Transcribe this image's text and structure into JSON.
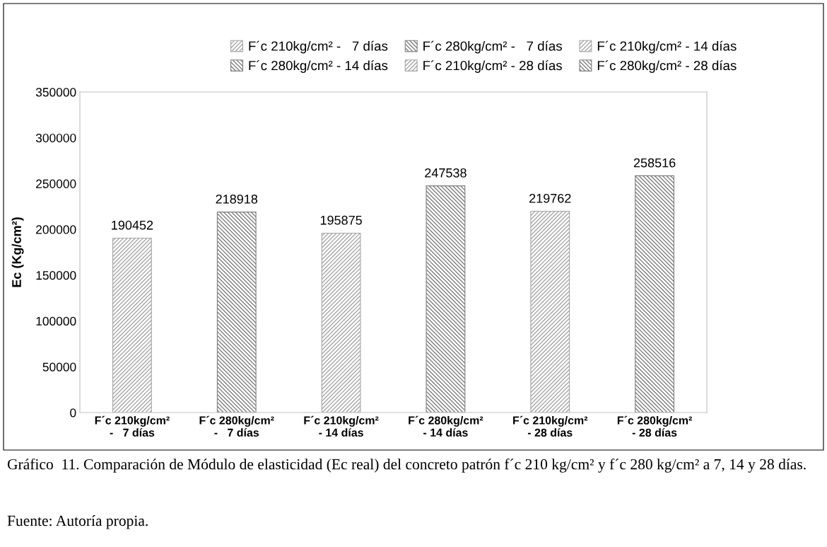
{
  "chart_data": {
    "type": "bar",
    "ylabel": "Ec (Kg/cm²)",
    "categories": [
      "F´c 210kg/cm²\n-   7 días",
      "F´c 280kg/cm²\n-   7 días",
      "F´c 210kg/cm²\n- 14 días",
      "F´c 280kg/cm²\n- 14 días",
      "F´c 210kg/cm²\n- 28 días",
      "F´c 280kg/cm²\n- 28 días"
    ],
    "series": [
      {
        "name": "F´c 210kg/cm² -   7 días",
        "color": "#a6a6a6",
        "values": [
          190452,
          null,
          null,
          null,
          null,
          null
        ]
      },
      {
        "name": "F´c 280kg/cm² -   7 días",
        "color": "#7f7f7f",
        "values": [
          null,
          218918,
          null,
          null,
          null,
          null
        ]
      },
      {
        "name": "F´c 210kg/cm² - 14 días",
        "color": "#a6a6a6",
        "values": [
          null,
          null,
          195875,
          null,
          null,
          null
        ]
      },
      {
        "name": "F´c 280kg/cm² - 14 días",
        "color": "#7f7f7f",
        "values": [
          null,
          null,
          null,
          247538,
          null,
          null
        ]
      },
      {
        "name": "F´c 210kg/cm² - 28 días",
        "color": "#a6a6a6",
        "values": [
          null,
          null,
          null,
          null,
          219762,
          null
        ]
      },
      {
        "name": "F´c 280kg/cm² - 28 días",
        "color": "#7f7f7f",
        "values": [
          null,
          null,
          null,
          null,
          null,
          258516
        ]
      }
    ],
    "ylim": [
      0,
      350000
    ],
    "yticks": [
      0,
      50000,
      100000,
      150000,
      200000,
      250000,
      300000,
      350000
    ],
    "data_labels": true,
    "grid": false,
    "legend": "top",
    "annotations": [
      "Gráfico  11. Comparación de Módulo de elasticidad (Ec real) del concreto patrón f´c 210 kg/cm² y f´c 280 kg/cm² a 7, 14 y 28 días.",
      "Fuente: Autoría propia."
    ]
  }
}
